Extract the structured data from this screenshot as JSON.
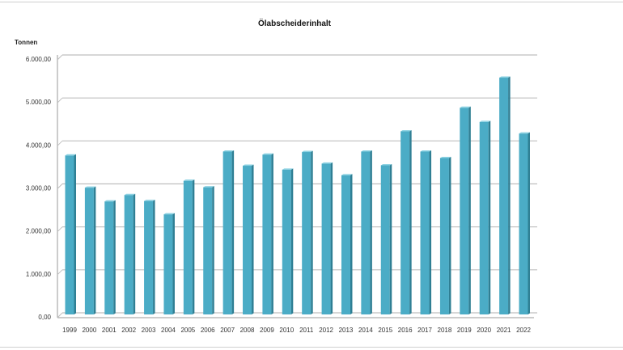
{
  "chart_data": {
    "type": "bar",
    "title": "Ölabscheiderinhalt",
    "ylabel": "Tonnen",
    "xlabel": "",
    "ylim": [
      0,
      6000
    ],
    "yticks": [
      0,
      1000,
      2000,
      3000,
      4000,
      5000,
      6000
    ],
    "ytick_labels": [
      "0,00",
      "1.000,00",
      "2.000,00",
      "3.000,00",
      "4.000,00",
      "5.000,00",
      "6.000,00"
    ],
    "grid": true,
    "legend": "none",
    "style": "3d-column",
    "categories": [
      "1999",
      "2000",
      "2001",
      "2002",
      "2003",
      "2004",
      "2005",
      "2006",
      "2007",
      "2008",
      "2009",
      "2010",
      "2011",
      "2012",
      "2013",
      "2014",
      "2015",
      "2016",
      "2017",
      "2018",
      "2019",
      "2020",
      "2021",
      "2022"
    ],
    "values": [
      3700,
      2950,
      2630,
      2780,
      2640,
      2330,
      3110,
      2960,
      3790,
      3460,
      3720,
      3370,
      3780,
      3510,
      3240,
      3790,
      3470,
      4260,
      3790,
      3640,
      4810,
      4480,
      5510,
      4210
    ],
    "colors": {
      "bar": "#4bacc6",
      "bar_side": "#2f7f94",
      "bar_top": "#8fd3e3",
      "grid": "#bfbfbf"
    }
  }
}
